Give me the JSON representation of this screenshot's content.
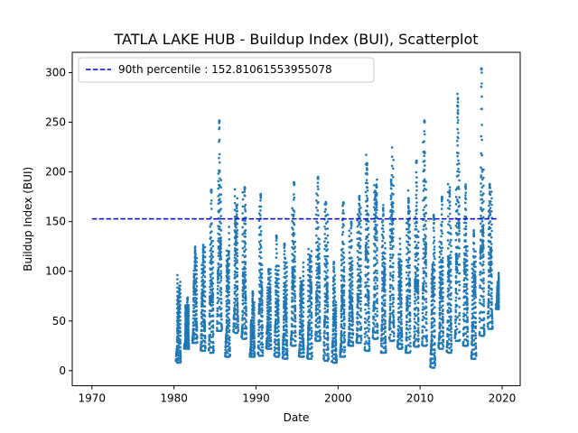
{
  "chart_data": {
    "type": "scatter",
    "title": "TATLA LAKE HUB - Buildup Index (BUI), Scatterplot",
    "xlabel": "Date",
    "ylabel": "Buildup Index (BUI)",
    "xlim": [
      1967.6,
      2022.2
    ],
    "ylim": [
      -15.2,
      320.4
    ],
    "x_ticks": [
      1970,
      1980,
      1990,
      2000,
      2010,
      2020
    ],
    "y_ticks": [
      0,
      50,
      100,
      150,
      200,
      250,
      300
    ],
    "grid": false,
    "legend_position": "top-left",
    "reference_line": {
      "label": "90th percentile : 152.81061553955078",
      "value": 152.81061553955078,
      "x_range": [
        1970,
        2019.5
      ],
      "color": "#0000cc",
      "style": "dashed"
    },
    "series": [
      {
        "color": "#1f77b4",
        "x_range": [
          1980,
          2019.6
        ],
        "seasonal_peaks": [
          {
            "year": 1980,
            "min": 8,
            "max": 102
          },
          {
            "year": 1981,
            "min": 22,
            "max": 74
          },
          {
            "year": 1982,
            "min": 28,
            "max": 136
          },
          {
            "year": 1983,
            "min": 20,
            "max": 130
          },
          {
            "year": 1984,
            "min": 18,
            "max": 182
          },
          {
            "year": 1985,
            "min": 40,
            "max": 252
          },
          {
            "year": 1986,
            "min": 14,
            "max": 150
          },
          {
            "year": 1987,
            "min": 38,
            "max": 202
          },
          {
            "year": 1988,
            "min": 32,
            "max": 185
          },
          {
            "year": 1989,
            "min": 14,
            "max": 80
          },
          {
            "year": 1990,
            "min": 15,
            "max": 178
          },
          {
            "year": 1991,
            "min": 22,
            "max": 120
          },
          {
            "year": 1992,
            "min": 14,
            "max": 136
          },
          {
            "year": 1993,
            "min": 12,
            "max": 128
          },
          {
            "year": 1994,
            "min": 25,
            "max": 190
          },
          {
            "year": 1995,
            "min": 14,
            "max": 110
          },
          {
            "year": 1996,
            "min": 12,
            "max": 138
          },
          {
            "year": 1997,
            "min": 30,
            "max": 195
          },
          {
            "year": 1998,
            "min": 10,
            "max": 170
          },
          {
            "year": 1999,
            "min": 8,
            "max": 110
          },
          {
            "year": 2000,
            "min": 14,
            "max": 170
          },
          {
            "year": 2001,
            "min": 25,
            "max": 150
          },
          {
            "year": 2002,
            "min": 28,
            "max": 185
          },
          {
            "year": 2003,
            "min": 20,
            "max": 228
          },
          {
            "year": 2004,
            "min": 32,
            "max": 238
          },
          {
            "year": 2005,
            "min": 18,
            "max": 170
          },
          {
            "year": 2006,
            "min": 30,
            "max": 230
          },
          {
            "year": 2007,
            "min": 22,
            "max": 135
          },
          {
            "year": 2008,
            "min": 18,
            "max": 185
          },
          {
            "year": 2009,
            "min": 24,
            "max": 212
          },
          {
            "year": 2010,
            "min": 25,
            "max": 252
          },
          {
            "year": 2011,
            "min": 3,
            "max": 165
          },
          {
            "year": 2012,
            "min": 22,
            "max": 175
          },
          {
            "year": 2013,
            "min": 18,
            "max": 190
          },
          {
            "year": 2014,
            "min": 30,
            "max": 300
          },
          {
            "year": 2015,
            "min": 25,
            "max": 198
          },
          {
            "year": 2016,
            "min": 12,
            "max": 160
          },
          {
            "year": 2017,
            "min": 35,
            "max": 305
          },
          {
            "year": 2018,
            "min": 42,
            "max": 188
          },
          {
            "year": 2019,
            "min": 62,
            "max": 100
          }
        ]
      }
    ]
  }
}
